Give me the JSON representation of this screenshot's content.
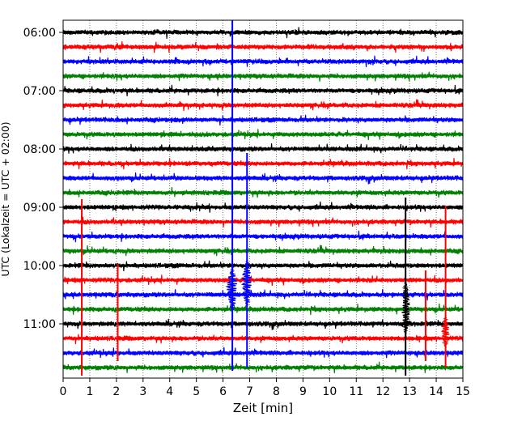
{
  "chart_data": {
    "type": "line",
    "subtype": "helicorder",
    "xlabel": "Zeit  [min]",
    "ylabel": "UTC (Lokalzeit = UTC + 02:00)",
    "x_ticks": [
      0,
      1,
      2,
      3,
      4,
      5,
      6,
      7,
      8,
      9,
      10,
      11,
      12,
      13,
      14,
      15
    ],
    "xlim": [
      0,
      15
    ],
    "y_tick_labels": [
      "06:00",
      "07:00",
      "08:00",
      "09:00",
      "10:00",
      "11:00"
    ],
    "trace_start_times": [
      "06:00",
      "06:15",
      "06:30",
      "06:45",
      "07:00",
      "07:15",
      "07:30",
      "07:45",
      "08:00",
      "08:15",
      "08:30",
      "08:45",
      "09:00",
      "09:15",
      "09:30",
      "09:45",
      "10:00",
      "10:15",
      "10:30",
      "10:45",
      "11:00",
      "11:15",
      "11:30",
      "11:45"
    ],
    "trace_colors": [
      "#000000",
      "#ff0000",
      "#0000ff",
      "#008000"
    ],
    "grid": "vertical dotted at each minute",
    "events": [
      {
        "trace": "09:00",
        "x_min": 0.7,
        "color": "#ff0000"
      },
      {
        "trace": "10:15",
        "x_min": 2.05,
        "color": "#ff0000"
      },
      {
        "trace": "08:15",
        "x_min": 6.35,
        "color": "#0000ff"
      },
      {
        "trace": "08:30",
        "x_min": 6.9,
        "color": "#0000ff"
      },
      {
        "trace": "09:00",
        "x_min": 12.85,
        "color": "#000000"
      },
      {
        "trace": "10:15",
        "x_min": 13.6,
        "color": "#ff0000"
      },
      {
        "trace": "09:15",
        "x_min": 14.35,
        "color": "#ff0000"
      }
    ]
  }
}
